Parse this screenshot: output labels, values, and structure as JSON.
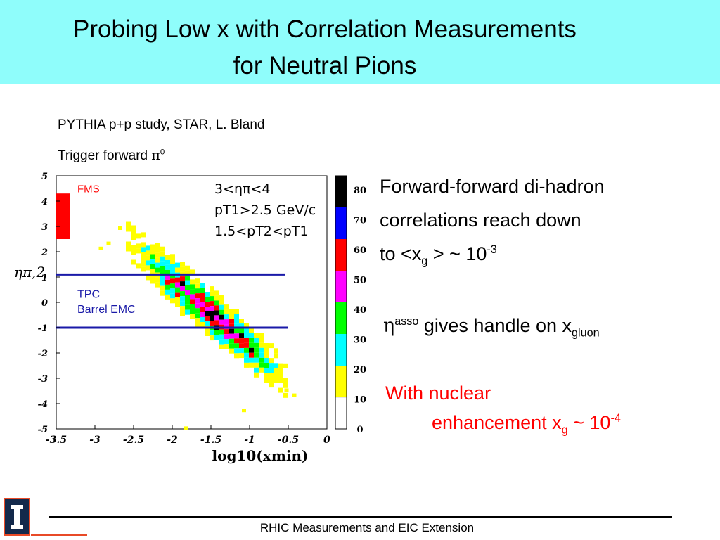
{
  "title": {
    "line1": "Probing Low x with Correlation Measurements",
    "line2": "for Neutral Pions"
  },
  "captions": {
    "study": "PYTHIA p+p study, STAR,  L. Bland",
    "trigger_prefix": "Trigger forward ",
    "trigger_symbol": "π",
    "trigger_sup": "0"
  },
  "bullets": {
    "b1_line1": "Forward-forward di-hadron",
    "b1_line2": "correlations  reach down",
    "b1_line3_prefix": "to  <x",
    "b1_line3_sub": "g",
    "b1_line3_mid": " > ~ 10",
    "b1_line3_sup": "-3",
    "b2_eta": "η",
    "b2_sup": "asso",
    "b2_mid": " gives handle on x",
    "b2_sub": "gluon",
    "b3_line1": "With nuclear",
    "b3_line2_prefix": "enhancement  x",
    "b3_line2_sub": "g",
    "b3_line2_mid": " ~ 10",
    "b3_line2_sup": "-4"
  },
  "footer": {
    "text": "RHIC Measurements and EIC Extension"
  },
  "colors": {
    "title_bg": "#8ffdfb",
    "fms": "#ff0000",
    "tpc": "#1a1aa8",
    "highlight": "#ff0000"
  },
  "chart_data": {
    "type": "heatmap",
    "xlabel": "log10(xmin)",
    "ylabel": "ηπ,2",
    "xlim": [
      -3.5,
      0
    ],
    "ylim": [
      -5,
      5
    ],
    "xticks": [
      "-3.5",
      "-3",
      "-2.5",
      "-2",
      "-1.5",
      "-1",
      "-0.5",
      "0"
    ],
    "yticks": [
      "5",
      "4",
      "3",
      "2",
      "1",
      "0",
      "-1",
      "-2",
      "-3",
      "-4",
      "-5"
    ],
    "cuts": [
      "3<ηπ<4",
      "pT1>2.5 GeV/c",
      "1.5<pT2<pT1"
    ],
    "annotations": {
      "fms": "FMS",
      "tpc_line1": "TPC",
      "tpc_line2": "Barrel EMC"
    },
    "fms_eta_range": [
      2.5,
      4.3
    ],
    "tpc_eta_lines": [
      1.1,
      -1.0
    ],
    "colorbar": {
      "ticks": [
        "80",
        "70",
        "60",
        "50",
        "40",
        "30",
        "20",
        "10",
        "0"
      ],
      "colors": [
        "#000000",
        "#0000ff",
        "#ff0000",
        "#ff00ff",
        "#00ff00",
        "#00ffff",
        "#ffff00",
        "#ffffff"
      ]
    },
    "band": {
      "x_start": -2.6,
      "x_end": -0.5,
      "eta_at_start": 2.5,
      "eta_at_end": -3.1,
      "width_eta": 1.7
    }
  }
}
